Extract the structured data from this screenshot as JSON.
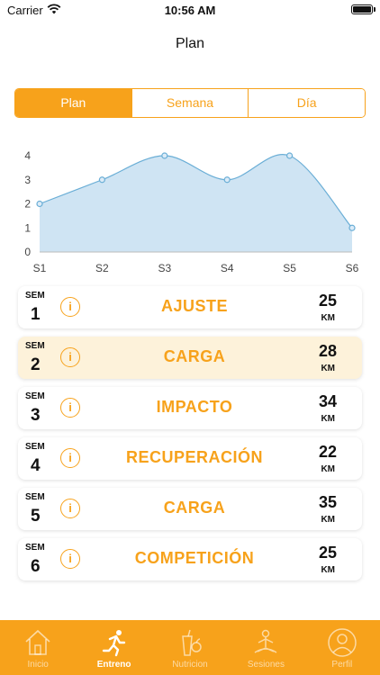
{
  "status_bar": {
    "carrier": "Carrier",
    "time": "10:56 AM"
  },
  "nav": {
    "title": "Plan"
  },
  "segments": [
    {
      "label": "Plan",
      "active": true
    },
    {
      "label": "Semana",
      "active": false
    },
    {
      "label": "Día",
      "active": false
    }
  ],
  "chart_data": {
    "type": "area",
    "categories": [
      "S1",
      "S2",
      "S3",
      "S4",
      "S5",
      "S6"
    ],
    "values": [
      2,
      3,
      4,
      3,
      4,
      1
    ],
    "ylim": [
      0,
      4
    ],
    "yticks": [
      0,
      1,
      2,
      3,
      4
    ],
    "grid": false,
    "colors": {
      "fill": "#cfe4f3",
      "line": "#6aaed6",
      "point": "#6aaed6"
    }
  },
  "weeks": [
    {
      "sem_label": "SEM",
      "number": "1",
      "phase": "AJUSTE",
      "km": "25",
      "unit": "KM",
      "highlight": false
    },
    {
      "sem_label": "SEM",
      "number": "2",
      "phase": "CARGA",
      "km": "28",
      "unit": "KM",
      "highlight": true
    },
    {
      "sem_label": "SEM",
      "number": "3",
      "phase": "IMPACTO",
      "km": "34",
      "unit": "KM",
      "highlight": false
    },
    {
      "sem_label": "SEM",
      "number": "4",
      "phase": "RECUPERACIÓN",
      "km": "22",
      "unit": "KM",
      "highlight": false
    },
    {
      "sem_label": "SEM",
      "number": "5",
      "phase": "CARGA",
      "km": "35",
      "unit": "KM",
      "highlight": false
    },
    {
      "sem_label": "SEM",
      "number": "6",
      "phase": "COMPETICIÓN",
      "km": "25",
      "unit": "KM",
      "highlight": false
    }
  ],
  "tabs": [
    {
      "label": "Inicio",
      "icon": "home-icon",
      "active": false
    },
    {
      "label": "Entreno",
      "icon": "runner-icon",
      "active": true
    },
    {
      "label": "Nutricion",
      "icon": "nutrition-icon",
      "active": false
    },
    {
      "label": "Sesiones",
      "icon": "meditation-icon",
      "active": false
    },
    {
      "label": "Perfil",
      "icon": "profile-icon",
      "active": false
    }
  ],
  "colors": {
    "accent": "#f7a21b",
    "highlight": "#fdf2da"
  }
}
